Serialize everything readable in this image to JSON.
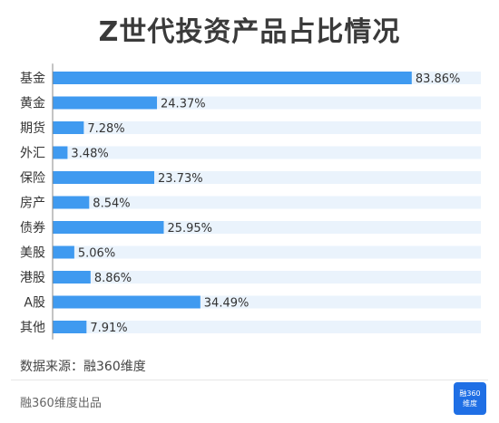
{
  "title": "Z世代投资产品占比情况",
  "chart_data": {
    "type": "bar",
    "orientation": "horizontal",
    "title": "Z世代投资产品占比情况",
    "categories": [
      "基金",
      "黄金",
      "期货",
      "外汇",
      "保险",
      "房产",
      "债券",
      "美股",
      "港股",
      "A股",
      "其他"
    ],
    "values": [
      83.86,
      24.37,
      7.28,
      3.48,
      23.73,
      8.54,
      25.95,
      5.06,
      8.86,
      34.49,
      7.91
    ],
    "value_labels": [
      "83.86%",
      "24.37%",
      "7.28%",
      "3.48%",
      "23.73%",
      "8.54%",
      "25.95%",
      "5.06%",
      "8.86%",
      "34.49%",
      "7.91%"
    ],
    "xlim": [
      0,
      100
    ],
    "grid": false,
    "legend": "none",
    "colors": {
      "bar": "#3f9af0",
      "track": "#eaf3fc",
      "axis": "#888888",
      "text": "#333333"
    }
  },
  "source": "数据来源：融360维度",
  "footer": "融360维度出品",
  "logo": {
    "line1": "融360",
    "line2": "维度"
  }
}
